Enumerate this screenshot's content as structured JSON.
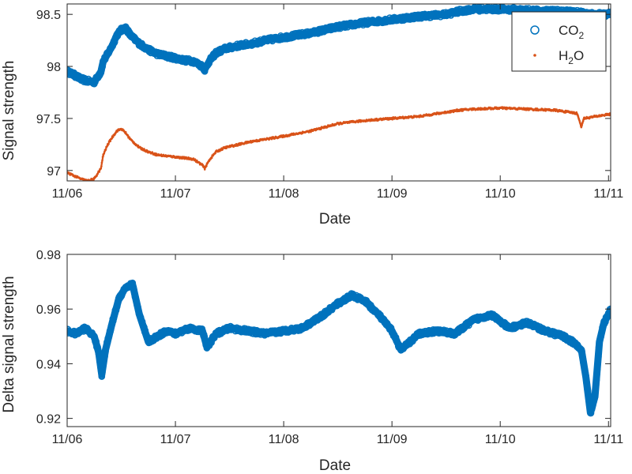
{
  "chart_data": [
    {
      "type": "scatter",
      "xlabel": "Date",
      "ylabel": "Signal strength",
      "ylim": [
        96.9,
        98.6
      ],
      "yticks": [
        97,
        97.5,
        98,
        98.5
      ],
      "ytick_labels": [
        "97",
        "97.5",
        "98",
        "98.5"
      ],
      "xlim": [
        "2015-11-06",
        "2015-11-11 00:30"
      ],
      "xticks": [
        "11/06",
        "11/07",
        "11/08",
        "11/09",
        "11/10",
        "11/11"
      ],
      "grid": false,
      "legend": {
        "position": "top-right",
        "entries": [
          {
            "base": "CO",
            "sub": "2",
            "marker": "circle",
            "color": "#0072BD"
          },
          {
            "base": "H",
            "sub": "2",
            "suffix": "O",
            "marker": "dot",
            "color": "#D95319"
          }
        ]
      },
      "series": [
        {
          "name": "CO2",
          "color": "#0072BD",
          "marker": "circle",
          "x": [
            "11/06 00:00",
            "11/06 01:30",
            "11/06 03:00",
            "11/06 04:30",
            "11/06 06:00",
            "11/06 07:30",
            "11/06 08:00",
            "11/06 09:00",
            "11/06 10:00",
            "11/06 11:00",
            "11/06 12:00",
            "11/06 13:00",
            "11/06 14:00",
            "11/06 16:00",
            "11/06 18:00",
            "11/06 20:00",
            "11/06 22:00",
            "11/07 00:00",
            "11/07 02:00",
            "11/07 04:00",
            "11/07 06:00",
            "11/07 06:30",
            "11/07 07:30",
            "11/07 09:00",
            "11/07 11:00",
            "11/07 14:00",
            "11/07 17:00",
            "11/07 20:00",
            "11/08 00:00",
            "11/08 06:00",
            "11/08 12:00",
            "11/08 18:00",
            "11/09 00:00",
            "11/09 06:00",
            "11/09 12:00",
            "11/09 15:00",
            "11/09 18:00",
            "11/10 00:00",
            "11/10 06:00",
            "11/10 12:00",
            "11/10 17:00",
            "11/10 20:00",
            "11/10 22:00",
            "11/11 00:00",
            "11/11 00:30"
          ],
          "values": [
            97.95,
            97.92,
            97.88,
            97.86,
            97.85,
            97.95,
            98.05,
            98.12,
            98.2,
            98.3,
            98.35,
            98.37,
            98.3,
            98.22,
            98.16,
            98.12,
            98.1,
            98.08,
            98.06,
            98.05,
            98.0,
            97.97,
            98.05,
            98.13,
            98.17,
            98.2,
            98.22,
            98.25,
            98.28,
            98.32,
            98.38,
            98.42,
            98.45,
            98.48,
            98.5,
            98.53,
            98.55,
            98.55,
            98.54,
            98.53,
            98.52,
            98.5,
            98.5,
            98.5,
            98.52
          ]
        },
        {
          "name": "H2O",
          "color": "#D95319",
          "marker": "dot",
          "x": [
            "11/06 00:00",
            "11/06 01:30",
            "11/06 03:00",
            "11/06 04:30",
            "11/06 06:00",
            "11/06 07:30",
            "11/06 08:00",
            "11/06 09:00",
            "11/06 10:00",
            "11/06 11:00",
            "11/06 12:00",
            "11/06 13:00",
            "11/06 14:00",
            "11/06 16:00",
            "11/06 18:00",
            "11/06 20:00",
            "11/06 22:00",
            "11/07 00:00",
            "11/07 02:00",
            "11/07 04:00",
            "11/07 06:00",
            "11/07 06:30",
            "11/07 07:30",
            "11/07 09:00",
            "11/07 11:00",
            "11/07 14:00",
            "11/07 17:00",
            "11/07 20:00",
            "11/08 00:00",
            "11/08 06:00",
            "11/08 12:00",
            "11/08 18:00",
            "11/09 00:00",
            "11/09 06:00",
            "11/09 12:00",
            "11/09 15:00",
            "11/09 18:00",
            "11/10 00:00",
            "11/10 06:00",
            "11/10 12:00",
            "11/10 17:00",
            "11/10 18:00",
            "11/10 18:30",
            "11/11 00:00",
            "11/11 00:30"
          ],
          "values": [
            96.98,
            96.95,
            96.92,
            96.9,
            96.92,
            97.02,
            97.15,
            97.25,
            97.32,
            97.38,
            97.4,
            97.36,
            97.3,
            97.22,
            97.18,
            97.15,
            97.14,
            97.13,
            97.12,
            97.11,
            97.05,
            97.02,
            97.1,
            97.18,
            97.22,
            97.25,
            97.28,
            97.3,
            97.33,
            97.38,
            97.45,
            97.48,
            97.5,
            97.52,
            97.56,
            97.58,
            97.59,
            97.6,
            97.59,
            97.58,
            97.55,
            97.42,
            97.5,
            97.54,
            97.54
          ]
        }
      ]
    },
    {
      "type": "scatter",
      "xlabel": "Date",
      "ylabel": "Delta signal strength",
      "ylim": [
        0.917,
        0.98
      ],
      "yticks": [
        0.92,
        0.94,
        0.96,
        0.98
      ],
      "ytick_labels": [
        "0.92",
        "0.94",
        "0.96",
        "0.98"
      ],
      "xlim": [
        "2015-11-06",
        "2015-11-11 00:30"
      ],
      "xticks": [
        "11/06",
        "11/07",
        "11/08",
        "11/09",
        "11/10",
        "11/11"
      ],
      "grid": false,
      "series": [
        {
          "name": "",
          "color": "#0072BD",
          "marker": "circle",
          "x": [
            "11/06 00:00",
            "11/06 02:00",
            "11/06 04:00",
            "11/06 06:00",
            "11/06 07:00",
            "11/06 07:40",
            "11/06 08:30",
            "11/06 10:00",
            "11/06 11:30",
            "11/06 13:00",
            "11/06 14:30",
            "11/06 16:00",
            "11/06 18:00",
            "11/06 20:00",
            "11/06 22:00",
            "11/07 00:00",
            "11/07 03:00",
            "11/07 06:00",
            "11/07 07:00",
            "11/07 09:00",
            "11/07 12:00",
            "11/07 16:00",
            "11/07 20:00",
            "11/08 00:00",
            "11/08 04:00",
            "11/08 08:00",
            "11/08 12:00",
            "11/08 15:00",
            "11/08 18:00",
            "11/08 21:00",
            "11/09 00:00",
            "11/09 02:00",
            "11/09 06:00",
            "11/09 10:00",
            "11/09 14:00",
            "11/09 18:00",
            "11/09 22:00",
            "11/10 02:00",
            "11/10 06:00",
            "11/10 10:00",
            "11/10 14:00",
            "11/10 16:00",
            "11/10 18:00",
            "11/10 19:00",
            "11/10 20:00",
            "11/10 21:00",
            "11/10 22:00",
            "11/10 23:00",
            "11/11 00:00",
            "11/11 00:30"
          ],
          "values": [
            0.952,
            0.951,
            0.953,
            0.95,
            0.944,
            0.936,
            0.945,
            0.955,
            0.964,
            0.968,
            0.969,
            0.958,
            0.948,
            0.95,
            0.952,
            0.951,
            0.953,
            0.952,
            0.946,
            0.951,
            0.953,
            0.952,
            0.951,
            0.952,
            0.953,
            0.957,
            0.962,
            0.965,
            0.963,
            0.958,
            0.952,
            0.945,
            0.951,
            0.952,
            0.951,
            0.956,
            0.958,
            0.953,
            0.955,
            0.952,
            0.95,
            0.948,
            0.945,
            0.935,
            0.922,
            0.928,
            0.948,
            0.955,
            0.958,
            0.96
          ]
        }
      ]
    }
  ]
}
